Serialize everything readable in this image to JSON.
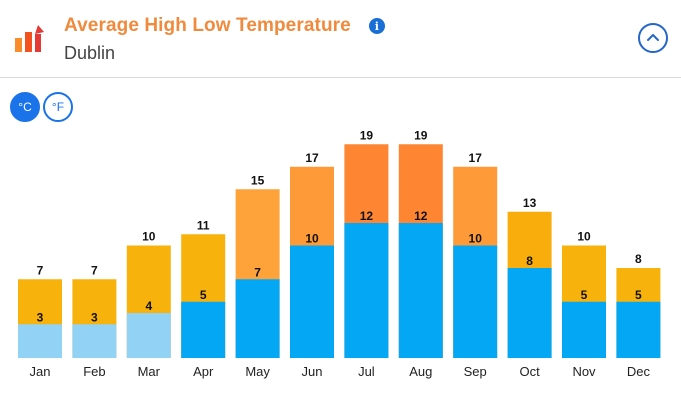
{
  "header": {
    "title": "Average High Low Temperature",
    "subtitle": "Dublin",
    "info_icon": "info-icon",
    "collapse_icon": "chevron-up-icon",
    "logo_icon": "temperature-bars-icon"
  },
  "units": {
    "celsius_label": "°C",
    "fahrenheit_label": "°F",
    "selected": "celsius"
  },
  "colors": {
    "high_warm": "#f7ae0b",
    "high_hot": "#fe8e32",
    "high_hottest": "#fe7f2c",
    "low_cold": "#92d2f5",
    "low_mild": "#03a9f4",
    "accent": "#1a73e8",
    "title": "#f08a3c"
  },
  "chart_data": {
    "type": "bar",
    "categories": [
      "Jan",
      "Feb",
      "Mar",
      "Apr",
      "May",
      "Jun",
      "Jul",
      "Aug",
      "Sep",
      "Oct",
      "Nov",
      "Dec"
    ],
    "series": [
      {
        "name": "High",
        "values": [
          7,
          7,
          10,
          11,
          15,
          17,
          19,
          19,
          17,
          13,
          10,
          8
        ]
      },
      {
        "name": "Low",
        "values": [
          3,
          3,
          4,
          5,
          7,
          10,
          12,
          12,
          10,
          8,
          5,
          5
        ]
      }
    ],
    "high_colors": [
      "#f8b20c",
      "#f8b20c",
      "#f8b20c",
      "#f8b20c",
      "#fea33a",
      "#fe9b38",
      "#fe8632",
      "#fe8632",
      "#fe9b38",
      "#f8ad0c",
      "#f8b20c",
      "#f8b20c"
    ],
    "low_colors": [
      "#92d2f5",
      "#92d2f5",
      "#92d2f5",
      "#04a7f3",
      "#04a7f3",
      "#04a7f3",
      "#04a7f3",
      "#04a7f3",
      "#04a7f3",
      "#04a7f3",
      "#04a7f3",
      "#04a7f3"
    ],
    "ylim": [
      0,
      20
    ],
    "grid": false,
    "legend": "none"
  }
}
